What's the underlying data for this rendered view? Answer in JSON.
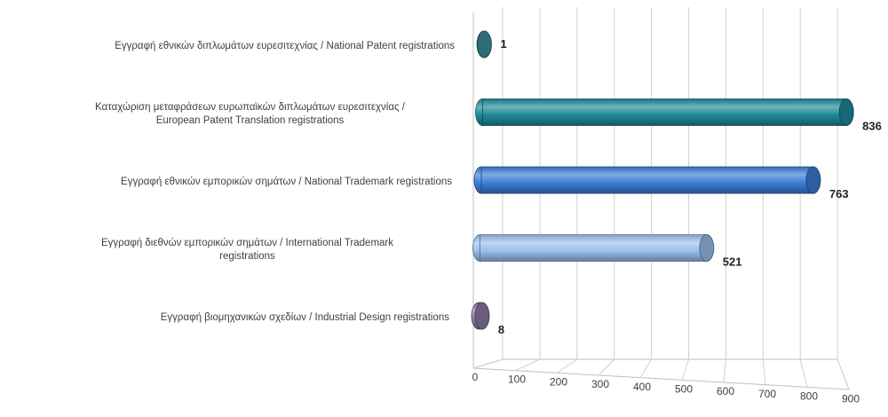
{
  "chart_data": {
    "type": "bar",
    "orientation": "horizontal",
    "style": "3d-cylinder",
    "categories": [
      [
        "Εγγραφή  εθνικών διπλωμάτων ευρεσιτεχνίας / National Patent registrations"
      ],
      [
        "Καταχώριση μεταφράσεων ευρωπαϊκών διπλωμάτων ευρεσιτεχνίας /",
        "European Patent Translation registrations"
      ],
      [
        "Εγγραφή  εθνικών εμπορικών σημάτων / National Trademark registrations"
      ],
      [
        "Εγγραφή  διεθνών εμπορικών σημάτων / International Trademark",
        "registrations"
      ],
      [
        "Εγγραφή  βιομηχανικών σχεδίων / Industrial Design registrations"
      ]
    ],
    "values": [
      1,
      836,
      763,
      521,
      8
    ],
    "value_labels": [
      "1",
      "836",
      "763",
      "521",
      "8"
    ],
    "colors": [
      "#3a8ea0",
      "#1f8a9a",
      "#3c7ed8",
      "#9cc0ee",
      "#8c7aa8"
    ],
    "xlim": [
      0,
      900
    ],
    "ticks": [
      "0",
      "100",
      "200",
      "300",
      "400",
      "500",
      "600",
      "700",
      "800",
      "900"
    ],
    "grid": true,
    "legend": "none",
    "title": "",
    "xlabel": "",
    "ylabel": ""
  }
}
